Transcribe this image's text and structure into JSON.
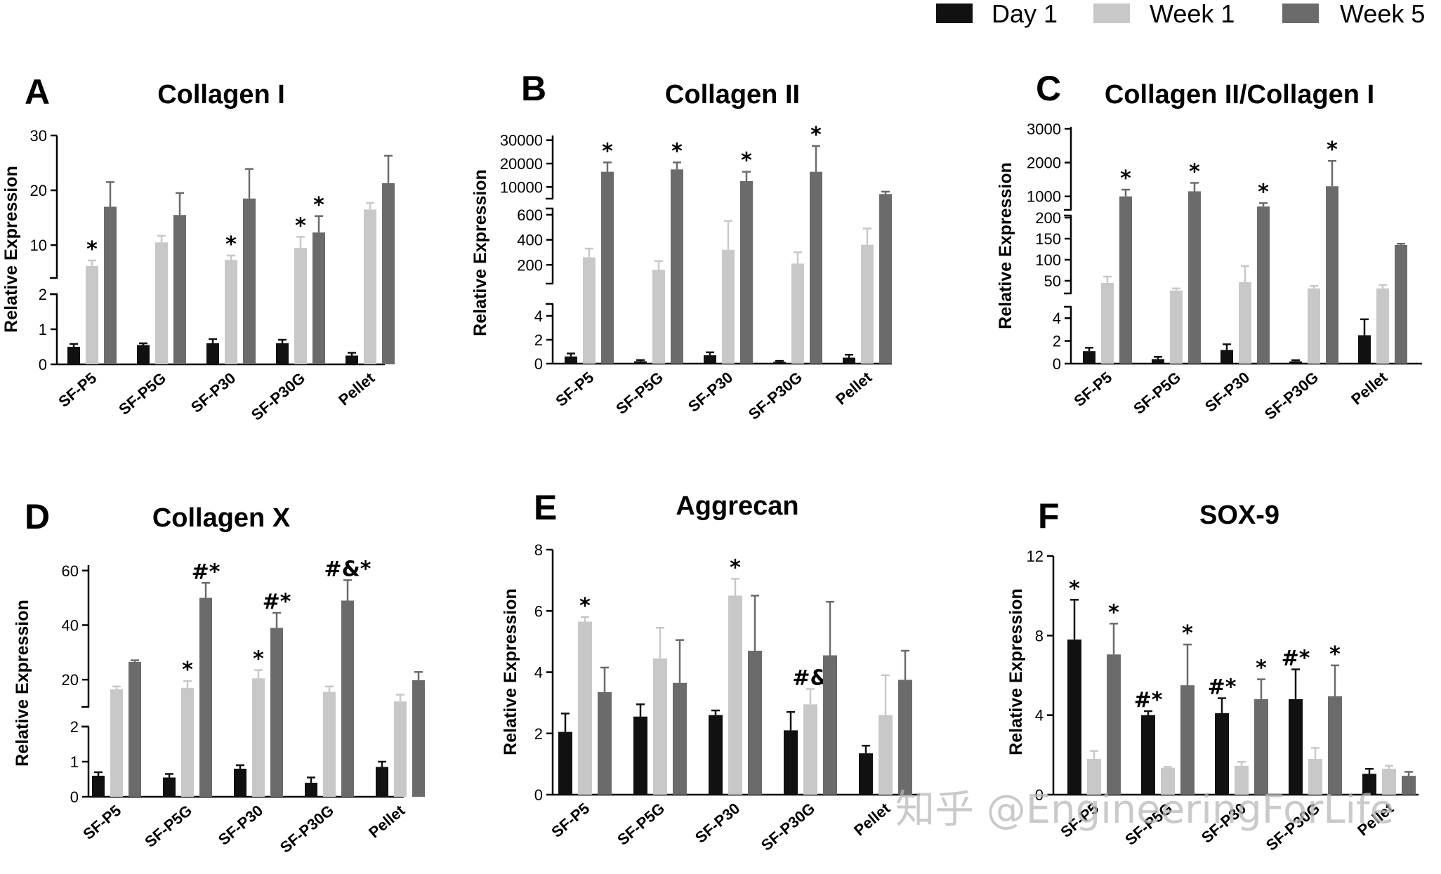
{
  "legend": [
    {
      "label": "Day 1",
      "color": "#111111"
    },
    {
      "label": "Week 1",
      "color": "#c8c8c8"
    },
    {
      "label": "Week 5",
      "color": "#6b6b6b"
    }
  ],
  "watermark": "知乎 @EngineeringForLife",
  "chart_data": [
    {
      "panel": "A",
      "type": "bar",
      "title": "Collagen I",
      "ylabel": "Relative Expression",
      "categories": [
        "SF-P5",
        "SF-P5G",
        "SF-P30",
        "SF-P30G",
        "Pellet"
      ],
      "axis_segments": [
        {
          "range": [
            0,
            2
          ],
          "ticks": [
            "0",
            "1",
            "2"
          ]
        },
        {
          "range": [
            4,
            30
          ],
          "ticks": [
            "10",
            "20",
            "30"
          ]
        }
      ],
      "series": [
        {
          "name": "Day 1",
          "values": [
            0.5,
            0.55,
            0.6,
            0.6,
            0.25
          ],
          "errors": [
            0.08,
            0.05,
            0.12,
            0.1,
            0.08
          ],
          "marks": [
            "",
            "",
            "",
            "",
            ""
          ]
        },
        {
          "name": "Week 1",
          "values": [
            6.2,
            10.5,
            7.3,
            9.5,
            16.5
          ],
          "errors": [
            1.0,
            1.2,
            0.8,
            2.0,
            1.2
          ],
          "marks": [
            "*",
            "",
            "*",
            "*",
            ""
          ]
        },
        {
          "name": "Week 5",
          "values": [
            17,
            15.5,
            18.5,
            12.3,
            21.3
          ],
          "errors": [
            4.5,
            4.0,
            5.4,
            3.0,
            5.0
          ],
          "marks": [
            "",
            "",
            "",
            "*",
            ""
          ]
        }
      ]
    },
    {
      "panel": "B",
      "type": "bar",
      "title": "Collagen II",
      "ylabel": "Relative Expression",
      "categories": [
        "SF-P5",
        "SF-P5G",
        "SF-P30",
        "SF-P30G",
        "Pellet"
      ],
      "axis_segments": [
        {
          "range": [
            0,
            5
          ],
          "ticks": [
            "0",
            "2",
            "4"
          ]
        },
        {
          "range": [
            50,
            650
          ],
          "ticks": [
            "200",
            "400",
            "600"
          ]
        },
        {
          "range": [
            5000,
            32000
          ],
          "ticks": [
            "10000",
            "20000",
            "30000"
          ]
        }
      ],
      "series": [
        {
          "name": "Day 1",
          "values": [
            0.6,
            0.2,
            0.7,
            0.15,
            0.5
          ],
          "errors": [
            0.25,
            0.1,
            0.25,
            0.08,
            0.25
          ],
          "marks": [
            "",
            "",
            "",
            "",
            ""
          ]
        },
        {
          "name": "Week 1",
          "values": [
            260,
            160,
            320,
            210,
            360
          ],
          "errors": [
            70,
            70,
            230,
            90,
            130
          ],
          "marks": [
            "",
            "",
            "",
            "",
            ""
          ]
        },
        {
          "name": "Week 5",
          "values": [
            16500,
            17500,
            12500,
            16500,
            7000
          ],
          "errors": [
            4000,
            3000,
            4000,
            11000,
            1000
          ],
          "marks": [
            "*",
            "*",
            "*",
            "*",
            ""
          ]
        }
      ]
    },
    {
      "panel": "C",
      "type": "bar",
      "title": "Collagen II/Collagen I",
      "ylabel": "Relative Expression",
      "categories": [
        "SF-P5",
        "SF-P5G",
        "SF-P30",
        "SF-P30G",
        "Pellet"
      ],
      "axis_segments": [
        {
          "range": [
            0,
            5
          ],
          "ticks": [
            "0",
            "2",
            "4"
          ]
        },
        {
          "range": [
            20,
            205
          ],
          "ticks": [
            "50",
            "100",
            "150",
            "200"
          ]
        },
        {
          "range": [
            600,
            3050
          ],
          "ticks": [
            "1000",
            "2000",
            "3000"
          ]
        }
      ],
      "series": [
        {
          "name": "Day 1",
          "values": [
            1.1,
            0.4,
            1.2,
            0.2,
            2.5
          ],
          "errors": [
            0.3,
            0.2,
            0.5,
            0.1,
            1.4
          ],
          "marks": [
            "",
            "",
            "",
            "",
            ""
          ]
        },
        {
          "name": "Week 1",
          "values": [
            45,
            27,
            47,
            32,
            32
          ],
          "errors": [
            15,
            5,
            38,
            6,
            8
          ],
          "marks": [
            "",
            "",
            "",
            "",
            ""
          ]
        },
        {
          "name": "Week 5",
          "values": [
            1000,
            1150,
            700,
            1300,
            135
          ],
          "errors": [
            200,
            250,
            100,
            750,
            3
          ],
          "marks": [
            "*",
            "*",
            "*",
            "*",
            ""
          ]
        }
      ]
    },
    {
      "panel": "D",
      "type": "bar",
      "title": "Collagen X",
      "ylabel": "Relative Expression",
      "categories": [
        "SF-P5",
        "SF-P5G",
        "SF-P30",
        "SF-P30G",
        "Pellet"
      ],
      "axis_segments": [
        {
          "range": [
            0,
            2
          ],
          "ticks": [
            "0",
            "1",
            "2"
          ]
        },
        {
          "range": [
            10,
            62
          ],
          "ticks": [
            "20",
            "40",
            "60"
          ]
        }
      ],
      "series": [
        {
          "name": "Day 1",
          "values": [
            0.6,
            0.55,
            0.8,
            0.4,
            0.85
          ],
          "errors": [
            0.1,
            0.1,
            0.1,
            0.15,
            0.15
          ],
          "marks": [
            "",
            "",
            "",
            "",
            ""
          ]
        },
        {
          "name": "Week 1",
          "values": [
            16.5,
            17,
            20.5,
            15.5,
            12
          ],
          "errors": [
            1.0,
            2.5,
            3.0,
            2.0,
            2.5
          ],
          "marks": [
            "",
            "*",
            "*",
            "",
            ""
          ]
        },
        {
          "name": "Week 5",
          "values": [
            26.5,
            50,
            39,
            49,
            19.8
          ],
          "errors": [
            0.6,
            5.5,
            5.5,
            7.5,
            3.0
          ],
          "marks": [
            "",
            "#*",
            "#*",
            "#&*",
            ""
          ]
        }
      ]
    },
    {
      "panel": "E",
      "type": "bar",
      "title": "Aggrecan",
      "ylabel": "Relative Expression",
      "categories": [
        "SF-P5",
        "SF-P5G",
        "SF-P30",
        "SF-P30G",
        "Pellet"
      ],
      "axis_segments": [
        {
          "range": [
            0,
            8
          ],
          "ticks": [
            "0",
            "2",
            "4",
            "6",
            "8"
          ]
        }
      ],
      "series": [
        {
          "name": "Day 1",
          "values": [
            2.05,
            2.55,
            2.6,
            2.1,
            1.35
          ],
          "errors": [
            0.6,
            0.4,
            0.15,
            0.6,
            0.25
          ],
          "marks": [
            "",
            "",
            "",
            "",
            ""
          ]
        },
        {
          "name": "Week 1",
          "values": [
            5.65,
            4.45,
            6.5,
            2.95,
            2.6
          ],
          "errors": [
            0.15,
            1.0,
            0.55,
            0.5,
            1.3
          ],
          "marks": [
            "*",
            "",
            "*",
            "#&",
            ""
          ]
        },
        {
          "name": "Week 5",
          "values": [
            3.35,
            3.65,
            4.7,
            4.55,
            3.75
          ],
          "errors": [
            0.8,
            1.4,
            1.8,
            1.75,
            0.95
          ],
          "marks": [
            "",
            "",
            "",
            "",
            ""
          ]
        }
      ]
    },
    {
      "panel": "F",
      "type": "bar",
      "title": "SOX-9",
      "ylabel": "Relative Expression",
      "categories": [
        "SF-P5",
        "SF-P5G",
        "SF-P30",
        "SF-P30G",
        "Pellet"
      ],
      "axis_segments": [
        {
          "range": [
            0,
            12
          ],
          "ticks": [
            "0",
            "4",
            "8",
            "12"
          ]
        }
      ],
      "series": [
        {
          "name": "Day 1",
          "values": [
            7.8,
            4.0,
            4.1,
            4.8,
            1.05
          ],
          "errors": [
            2.0,
            0.2,
            0.75,
            1.5,
            0.25
          ],
          "marks": [
            "*",
            "#*",
            "#*",
            "#*",
            ""
          ]
        },
        {
          "name": "Week 1",
          "values": [
            1.8,
            1.35,
            1.45,
            1.8,
            1.3
          ],
          "errors": [
            0.4,
            0.05,
            0.2,
            0.55,
            0.15
          ],
          "marks": [
            "",
            "",
            "",
            "",
            ""
          ]
        },
        {
          "name": "Week 5",
          "values": [
            7.05,
            5.5,
            4.8,
            4.95,
            0.95
          ],
          "errors": [
            1.55,
            2.05,
            1.0,
            1.55,
            0.2
          ],
          "marks": [
            "*",
            "*",
            "*",
            "*",
            ""
          ]
        }
      ]
    }
  ]
}
